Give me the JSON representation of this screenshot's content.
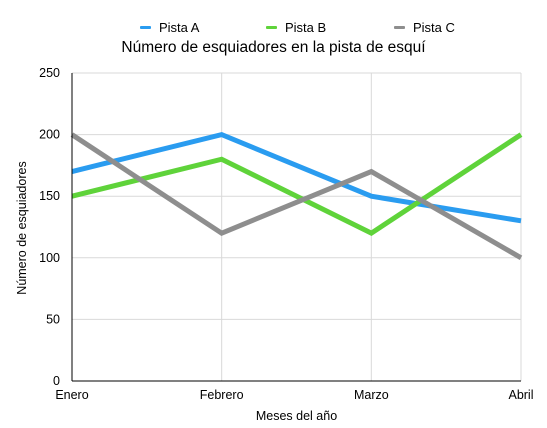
{
  "chart_data": {
    "type": "line",
    "title": "Número de esquiadores en la pista de esquí",
    "xlabel": "Meses del año",
    "ylabel": "Número de esquiadores",
    "categories": [
      "Enero",
      "Febrero",
      "Marzo",
      "Abril"
    ],
    "yticks": [
      "0",
      "50",
      "100",
      "150",
      "200",
      "250"
    ],
    "ylim": [
      0,
      250
    ],
    "grid": true,
    "legend_position": "top",
    "series": [
      {
        "name": "Pista A",
        "color": "#2a9cf0",
        "values": [
          170,
          200,
          150,
          130
        ]
      },
      {
        "name": "Pista B",
        "color": "#5fd33a",
        "values": [
          150,
          180,
          120,
          200
        ]
      },
      {
        "name": "Pista C",
        "color": "#8e8e8e",
        "values": [
          200,
          120,
          170,
          100
        ]
      }
    ]
  }
}
